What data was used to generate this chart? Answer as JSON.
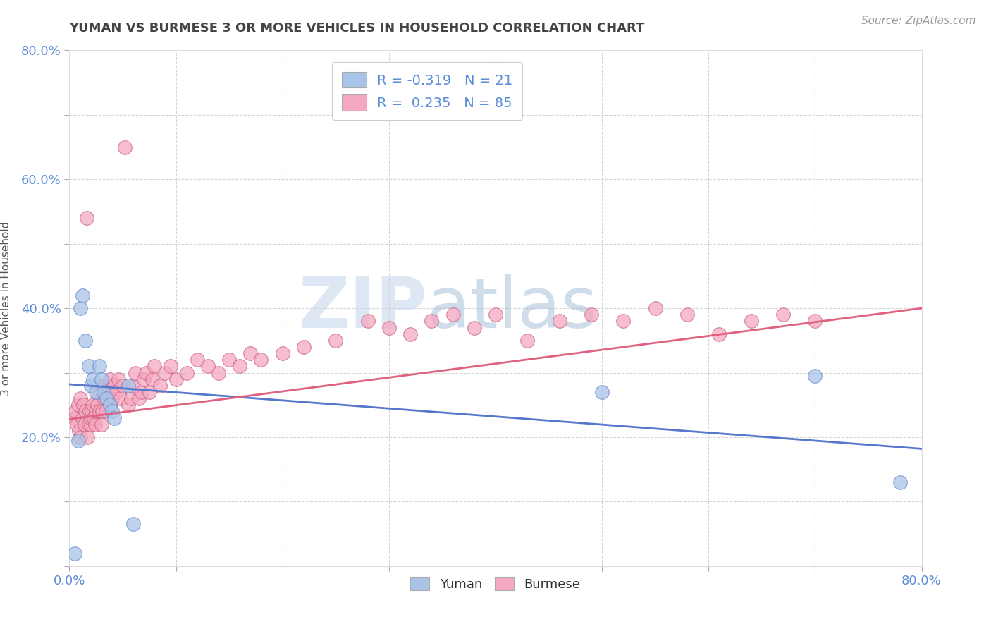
{
  "title": "YUMAN VS BURMESE 3 OR MORE VEHICLES IN HOUSEHOLD CORRELATION CHART",
  "source_text": "Source: ZipAtlas.com",
  "ylabel": "3 or more Vehicles in Household",
  "xlim": [
    0,
    0.8
  ],
  "ylim": [
    0,
    0.8
  ],
  "yuman_color": "#aac4e8",
  "burmese_color": "#f4a8c0",
  "yuman_line_color": "#5577cc",
  "burmese_line_color": "#e06080",
  "yuman_R": -0.319,
  "yuman_N": 21,
  "burmese_R": 0.235,
  "burmese_N": 85,
  "legend_label_yuman": "Yuman",
  "legend_label_burmese": "Burmese",
  "label_color": "#5b8dd9",
  "title_color": "#444444",
  "watermark_zip": "ZIP",
  "watermark_atlas": "atlas",
  "yuman_x": [
    0.005,
    0.008,
    0.01,
    0.012,
    0.015,
    0.018,
    0.02,
    0.022,
    0.025,
    0.028,
    0.03,
    0.032,
    0.035,
    0.038,
    0.04,
    0.042,
    0.055,
    0.06,
    0.5,
    0.7,
    0.78
  ],
  "yuman_y": [
    0.02,
    0.195,
    0.4,
    0.42,
    0.35,
    0.31,
    0.28,
    0.29,
    0.27,
    0.31,
    0.29,
    0.27,
    0.26,
    0.25,
    0.24,
    0.23,
    0.28,
    0.065,
    0.27,
    0.295,
    0.13
  ],
  "burmese_x": [
    0.005,
    0.006,
    0.007,
    0.008,
    0.009,
    0.01,
    0.01,
    0.012,
    0.013,
    0.014,
    0.015,
    0.016,
    0.017,
    0.018,
    0.019,
    0.02,
    0.02,
    0.021,
    0.022,
    0.023,
    0.024,
    0.025,
    0.026,
    0.027,
    0.028,
    0.03,
    0.031,
    0.032,
    0.033,
    0.034,
    0.035,
    0.036,
    0.037,
    0.038,
    0.039,
    0.04,
    0.042,
    0.044,
    0.046,
    0.048,
    0.05,
    0.052,
    0.055,
    0.058,
    0.06,
    0.062,
    0.065,
    0.068,
    0.07,
    0.072,
    0.075,
    0.078,
    0.08,
    0.085,
    0.09,
    0.095,
    0.1,
    0.11,
    0.12,
    0.13,
    0.14,
    0.15,
    0.16,
    0.17,
    0.18,
    0.2,
    0.22,
    0.25,
    0.28,
    0.3,
    0.32,
    0.34,
    0.36,
    0.38,
    0.4,
    0.43,
    0.46,
    0.49,
    0.52,
    0.55,
    0.58,
    0.61,
    0.64,
    0.67,
    0.7
  ],
  "burmese_y": [
    0.23,
    0.24,
    0.22,
    0.25,
    0.21,
    0.26,
    0.2,
    0.23,
    0.25,
    0.22,
    0.24,
    0.54,
    0.2,
    0.22,
    0.24,
    0.22,
    0.23,
    0.24,
    0.25,
    0.23,
    0.22,
    0.24,
    0.25,
    0.27,
    0.24,
    0.22,
    0.24,
    0.26,
    0.28,
    0.24,
    0.26,
    0.27,
    0.28,
    0.29,
    0.25,
    0.26,
    0.28,
    0.27,
    0.29,
    0.26,
    0.28,
    0.65,
    0.25,
    0.26,
    0.28,
    0.3,
    0.26,
    0.27,
    0.29,
    0.3,
    0.27,
    0.29,
    0.31,
    0.28,
    0.3,
    0.31,
    0.29,
    0.3,
    0.32,
    0.31,
    0.3,
    0.32,
    0.31,
    0.33,
    0.32,
    0.33,
    0.34,
    0.35,
    0.38,
    0.37,
    0.36,
    0.38,
    0.39,
    0.37,
    0.39,
    0.35,
    0.38,
    0.39,
    0.38,
    0.4,
    0.39,
    0.36,
    0.38,
    0.39,
    0.38
  ]
}
